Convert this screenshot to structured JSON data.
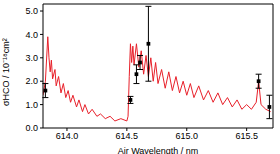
{
  "chart_data": {
    "type": "line",
    "xlabel": "Air Wavelength / nm",
    "ylabel": "σHCO / 10⁻¹⁸cm²",
    "xlim": [
      613.8,
      615.72
    ],
    "ylim": [
      0,
      5.3
    ],
    "xticks": [
      {
        "value": 614,
        "label": "614.0"
      },
      614.5,
      {
        "value": 615,
        "label": "615.0"
      },
      615.5
    ],
    "yticks": [
      {
        "value": 0,
        "label": "0.0"
      },
      {
        "value": 1,
        "label": "1.0"
      },
      {
        "value": 2,
        "label": "2.0"
      },
      {
        "value": 3,
        "label": "3.0"
      },
      {
        "value": 4,
        "label": "4.0"
      },
      {
        "value": 5,
        "label": "5.0"
      }
    ],
    "series": [
      {
        "type": "line",
        "color": "#e8202a",
        "x": [
          613.8,
          613.82,
          613.84,
          613.85,
          613.86,
          613.87,
          613.88,
          613.9,
          613.91,
          613.93,
          613.95,
          613.97,
          613.99,
          614.01,
          614.03,
          614.05,
          614.08,
          614.1,
          614.13,
          614.15,
          614.18,
          614.21,
          614.25,
          614.28,
          614.32,
          614.36,
          614.4,
          614.45,
          614.5,
          614.51,
          614.52,
          614.53,
          614.54,
          614.55,
          614.56,
          614.58,
          614.6,
          614.62,
          614.64,
          614.66,
          614.68,
          614.7,
          614.72,
          614.74,
          614.76,
          614.79,
          614.82,
          614.85,
          614.88,
          614.91,
          614.94,
          614.97,
          615.0,
          615.03,
          615.06,
          615.1,
          615.14,
          615.18,
          615.22,
          615.26,
          615.3,
          615.34,
          615.38,
          615.42,
          615.46,
          615.5,
          615.54,
          615.58,
          615.6,
          615.62,
          615.66,
          615.7
        ],
        "values": [
          1.4,
          2.0,
          3.9,
          3.0,
          2.4,
          2.9,
          2.1,
          2.5,
          1.8,
          2.2,
          1.5,
          1.9,
          1.3,
          1.6,
          1.1,
          1.4,
          0.9,
          1.2,
          0.7,
          1.0,
          0.6,
          0.8,
          0.5,
          0.6,
          0.4,
          0.5,
          0.3,
          0.4,
          0.3,
          0.5,
          2.2,
          3.6,
          2.8,
          3.5,
          2.7,
          3.6,
          2.6,
          3.3,
          2.3,
          3.1,
          2.2,
          3.0,
          2.0,
          2.8,
          1.9,
          2.5,
          1.7,
          2.4,
          1.6,
          2.2,
          1.5,
          2.0,
          1.4,
          1.9,
          1.3,
          1.8,
          1.2,
          1.6,
          1.1,
          1.5,
          1.0,
          1.3,
          0.9,
          1.2,
          0.8,
          1.0,
          0.8,
          1.1,
          2.0,
          1.0,
          0.8,
          0.7
        ]
      },
      {
        "type": "scatter",
        "color": "#000000",
        "marker": "square",
        "x": [
          613.82,
          614.53,
          614.58,
          614.61,
          614.68,
          615.6,
          615.69
        ],
        "values": [
          1.6,
          1.2,
          2.3,
          2.8,
          3.6,
          2.0,
          0.9
        ],
        "error": [
          0.3,
          0.15,
          0.4,
          0.3,
          1.6,
          0.3,
          0.5
        ]
      }
    ]
  }
}
